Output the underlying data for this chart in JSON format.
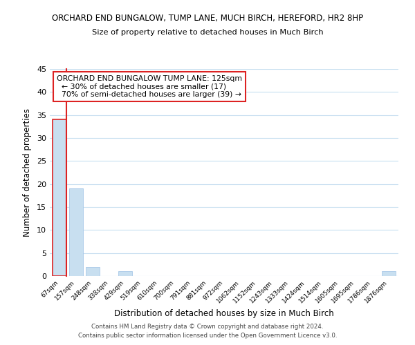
{
  "title": "ORCHARD END BUNGALOW, TUMP LANE, MUCH BIRCH, HEREFORD, HR2 8HP",
  "subtitle": "Size of property relative to detached houses in Much Birch",
  "xlabel": "Distribution of detached houses by size in Much Birch",
  "ylabel": "Number of detached properties",
  "bin_labels": [
    "67sqm",
    "157sqm",
    "248sqm",
    "338sqm",
    "429sqm",
    "519sqm",
    "610sqm",
    "700sqm",
    "791sqm",
    "881sqm",
    "972sqm",
    "1062sqm",
    "1152sqm",
    "1243sqm",
    "1333sqm",
    "1424sqm",
    "1514sqm",
    "1605sqm",
    "1695sqm",
    "1786sqm",
    "1876sqm"
  ],
  "bar_values": [
    34,
    19,
    2,
    0,
    1,
    0,
    0,
    0,
    0,
    0,
    0,
    0,
    0,
    0,
    0,
    0,
    0,
    0,
    0,
    0,
    1
  ],
  "highlight_bin_index": 0,
  "bar_color": "#c8dff0",
  "highlight_edge_color": "#dd2222",
  "normal_edge_color": "#a8c8e8",
  "ylim": [
    0,
    45
  ],
  "yticks": [
    0,
    5,
    10,
    15,
    20,
    25,
    30,
    35,
    40,
    45
  ],
  "annotation_title": "ORCHARD END BUNGALOW TUMP LANE: 125sqm",
  "annotation_line1": "← 30% of detached houses are smaller (17)",
  "annotation_line2": "70% of semi-detached houses are larger (39) →",
  "footnote1": "Contains HM Land Registry data © Crown copyright and database right 2024.",
  "footnote2": "Contains public sector information licensed under the Open Government Licence v3.0.",
  "background_color": "#ffffff",
  "grid_color": "#c8dff0"
}
